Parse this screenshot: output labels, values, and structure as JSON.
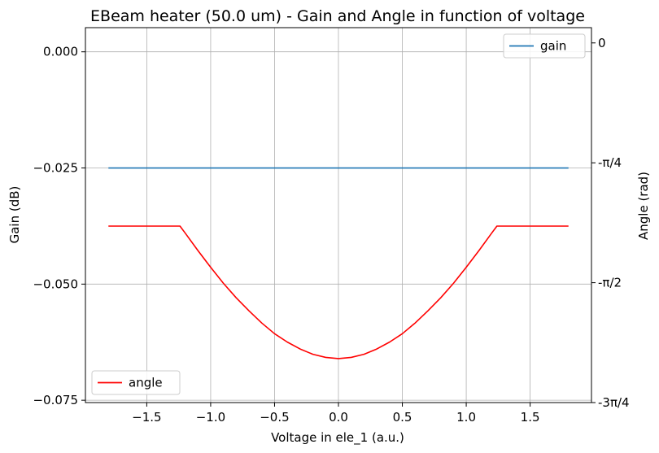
{
  "chart_data": {
    "type": "line",
    "title": "EBeam heater (50.0 um)  -  Gain and Angle in function of voltage",
    "xlabel": "Voltage in ele_1 (a.u.)",
    "ylabel": "Gain (dB)",
    "y2label": "Angle (rad)",
    "xlim": [
      -1.98,
      1.98
    ],
    "ylim": [
      -0.0755,
      0.0052
    ],
    "y2lim": [
      -2.3562,
      0.1
    ],
    "x_ticks": [
      -1.5,
      -1.0,
      -0.5,
      0.0,
      0.5,
      1.0,
      1.5
    ],
    "x_tick_labels": [
      "−1.5",
      "−1.0",
      "−0.5",
      "0.0",
      "0.5",
      "1.0",
      "1.5"
    ],
    "y_ticks": [
      0.0,
      -0.025,
      -0.05,
      -0.075
    ],
    "y_tick_labels": [
      "0.000",
      "−0.025",
      "−0.050",
      "−0.075"
    ],
    "y2_ticks": [
      0,
      -0.7854,
      -1.5708,
      -2.3562
    ],
    "y2_tick_labels": [
      "0",
      "-π/4",
      "-π/2",
      "-3π/4"
    ],
    "grid": true,
    "series": [
      {
        "name": "gain",
        "axis": "left",
        "color": "#1f77b4",
        "legend_position": "upper right",
        "x": [
          -1.8,
          1.8
        ],
        "y": [
          -0.025,
          -0.025
        ]
      },
      {
        "name": "angle",
        "axis": "right",
        "color": "#ff0000",
        "legend_position": "lower left",
        "x": [
          -1.8,
          -1.5,
          -1.24,
          -1.2,
          -1.1,
          -1.0,
          -0.9,
          -0.8,
          -0.7,
          -0.6,
          -0.5,
          -0.4,
          -0.3,
          -0.2,
          -0.1,
          0.0,
          0.1,
          0.2,
          0.3,
          0.4,
          0.5,
          0.6,
          0.7,
          0.8,
          0.9,
          1.0,
          1.1,
          1.2,
          1.24,
          1.5,
          1.8
        ],
        "y": [
          -1.2,
          -1.2,
          -1.2,
          -1.245,
          -1.36,
          -1.47,
          -1.575,
          -1.67,
          -1.755,
          -1.835,
          -1.905,
          -1.96,
          -2.005,
          -2.04,
          -2.06,
          -2.068,
          -2.06,
          -2.04,
          -2.005,
          -1.96,
          -1.905,
          -1.835,
          -1.755,
          -1.67,
          -1.575,
          -1.47,
          -1.36,
          -1.245,
          -1.2,
          -1.2,
          -1.2
        ]
      }
    ]
  }
}
